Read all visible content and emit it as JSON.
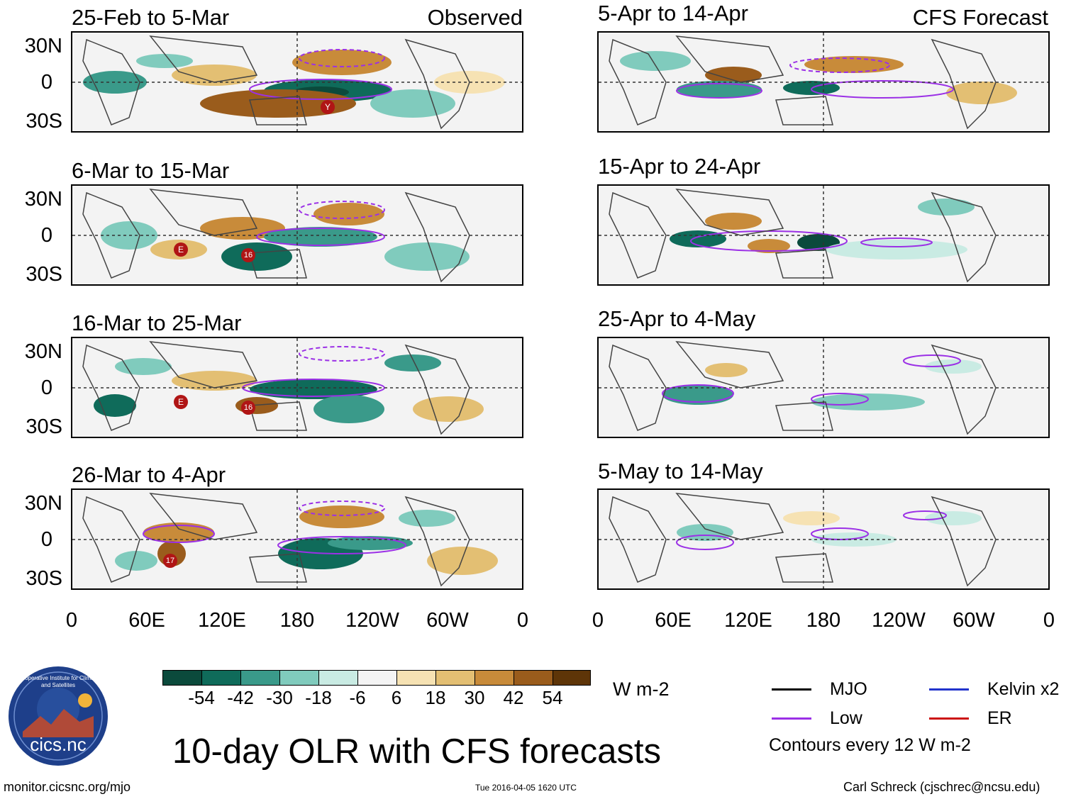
{
  "left_header": "Observed",
  "right_header": "CFS Forecast",
  "observed_panels": [
    {
      "period": "25-Feb to 5-Mar",
      "storm_markers": [
        "Y"
      ]
    },
    {
      "period": "6-Mar to 15-Mar",
      "storm_markers": [
        "E",
        "16"
      ]
    },
    {
      "period": "16-Mar to 25-Mar",
      "storm_markers": [
        "E",
        "16"
      ]
    },
    {
      "period": "26-Mar to 4-Apr",
      "storm_markers": [
        "17"
      ]
    }
  ],
  "forecast_panels": [
    {
      "period": "5-Apr to 14-Apr"
    },
    {
      "period": "15-Apr to 24-Apr"
    },
    {
      "period": "25-Apr to 4-May"
    },
    {
      "period": "5-May to 14-May"
    }
  ],
  "lat_labels": [
    "30N",
    "0",
    "30S"
  ],
  "lon_labels": [
    "0",
    "60E",
    "120E",
    "180",
    "120W",
    "60W",
    "0"
  ],
  "colorbar": {
    "unit": "W m-2",
    "labels": [
      "-54",
      "-42",
      "-30",
      "-18",
      "-6",
      "6",
      "18",
      "30",
      "42",
      "54"
    ],
    "colors": [
      "#0b4a3c",
      "#0f6b5a",
      "#3a9a8a",
      "#80cbbd",
      "#c9ebe3",
      "#f4f4f4",
      "#f6e2b3",
      "#e3bf73",
      "#c88b3a",
      "#9a5c1c",
      "#5e3508"
    ]
  },
  "legend": {
    "mjo": "MJO",
    "low": "Low",
    "kelvin": "Kelvin x2",
    "er": "ER",
    "contours_note": "Contours every 12 W m-2",
    "colors": {
      "mjo": "#000000",
      "low": "#9b30e6",
      "kelvin": "#2233cc",
      "er": "#cc1111"
    }
  },
  "main_title": "10-day OLR with CFS forecasts",
  "logo_text": "cics.nc",
  "logo_ring_text": "Cooperative Institute for Climate and Satellites",
  "footer": {
    "url": "monitor.cicsnc.org/mjo",
    "timestamp": "Tue 2016-04-05 1620 UTC",
    "author": "Carl Schreck (cjschrec@ncsu.edu)"
  }
}
